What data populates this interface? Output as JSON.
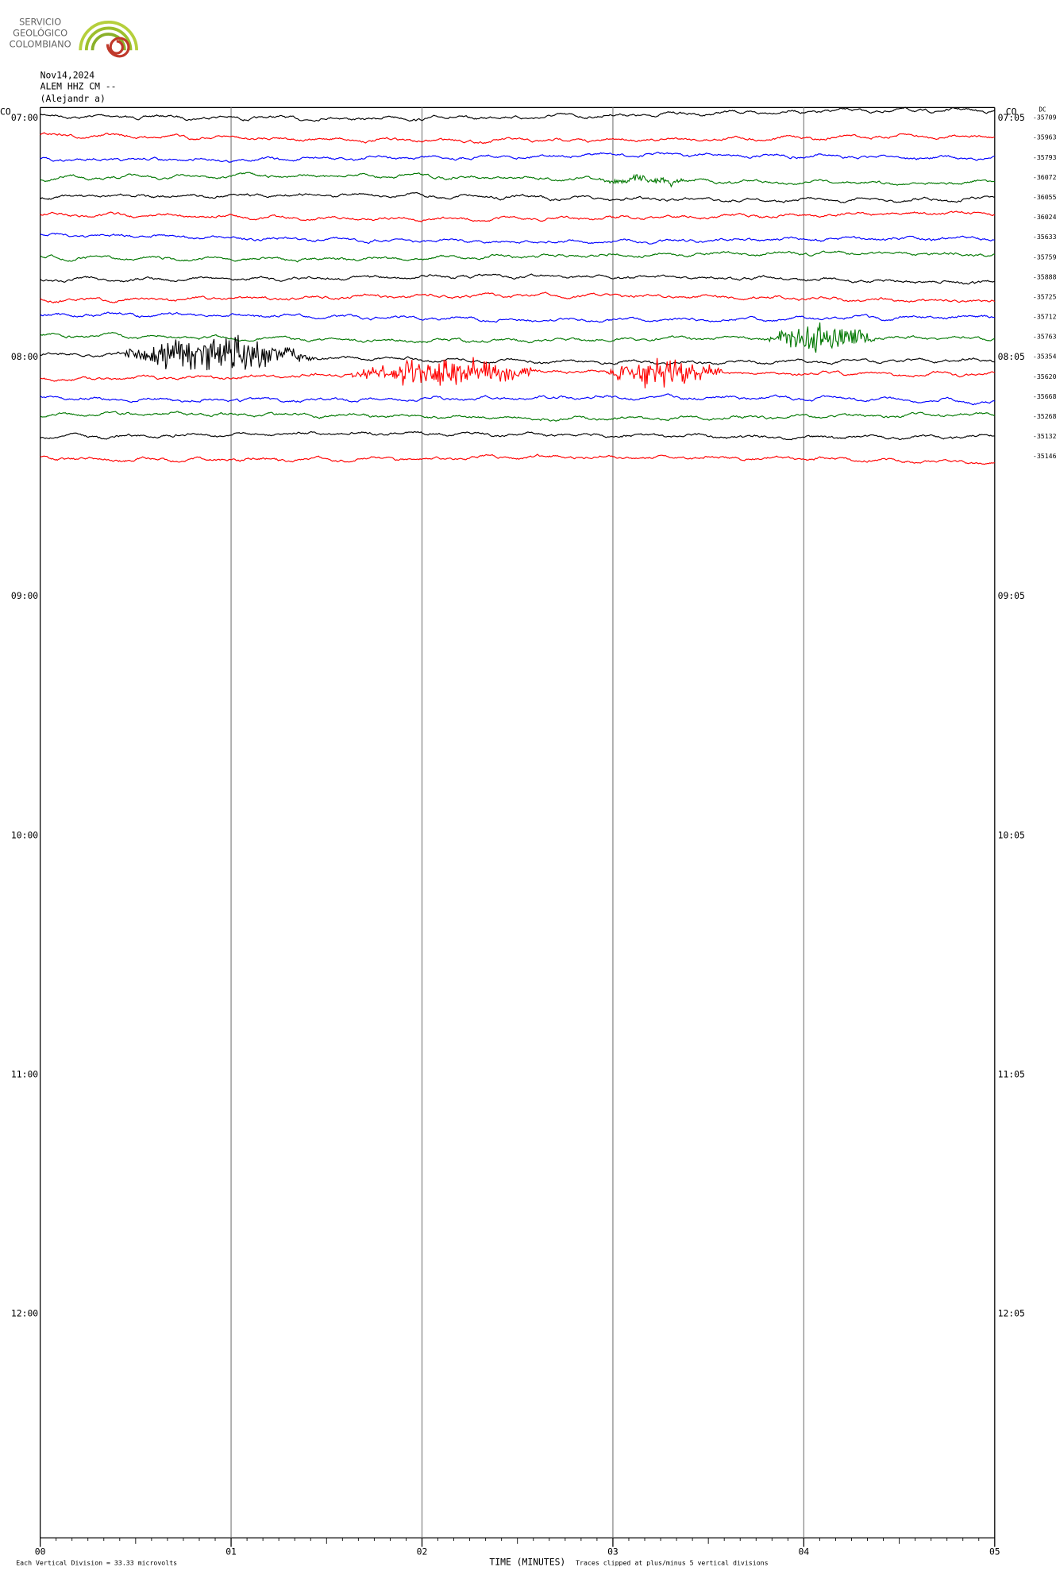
{
  "chart_data": {
    "type": "helicorder",
    "logo_lines": [
      "SERVICIO",
      "GEOLÓGICO",
      "COLOMBIANO"
    ],
    "header": [
      "Nov14,2024",
      "ALEM HHZ CM --",
      "(Alejandr  a)"
    ],
    "network_left": "CO",
    "network_right": "CO",
    "dc_title": "DC",
    "rows": [
      {
        "dc": -35709,
        "color": "#000000"
      },
      {
        "dc": -35963,
        "color": "#ff0000"
      },
      {
        "dc": -35793,
        "color": "#0000ff"
      },
      {
        "dc": -36072,
        "color": "#007700"
      },
      {
        "dc": -36055,
        "color": "#000000"
      },
      {
        "dc": -36024,
        "color": "#ff0000"
      },
      {
        "dc": -35633,
        "color": "#0000ff"
      },
      {
        "dc": -35759,
        "color": "#007700"
      },
      {
        "dc": -35888,
        "color": "#000000"
      },
      {
        "dc": -35725,
        "color": "#ff0000"
      },
      {
        "dc": -35712,
        "color": "#0000ff"
      },
      {
        "dc": -35763,
        "color": "#007700"
      },
      {
        "dc": -35354,
        "color": "#000000"
      },
      {
        "dc": -35620,
        "color": "#ff0000"
      },
      {
        "dc": -35668,
        "color": "#0000ff"
      },
      {
        "dc": -35268,
        "color": "#007700"
      },
      {
        "dc": -35132,
        "color": "#000000"
      },
      {
        "dc": -35146,
        "color": "#ff0000"
      }
    ],
    "hours": [
      {
        "left": "07:00",
        "right": "07:05"
      },
      {
        "left": "08:00",
        "right": "08:05"
      },
      {
        "left": "09:00",
        "right": "09:05"
      },
      {
        "left": "10:00",
        "right": "10:05"
      },
      {
        "left": "11:00",
        "right": "11:05"
      },
      {
        "left": "12:00",
        "right": "12:05"
      }
    ],
    "xlim": [
      0,
      5
    ],
    "xticks": [
      {
        "value": 0,
        "label": "00"
      },
      {
        "value": 1,
        "label": "01"
      },
      {
        "value": 2,
        "label": "02"
      },
      {
        "value": 3,
        "label": "03"
      },
      {
        "value": 4,
        "label": "04"
      },
      {
        "value": 5,
        "label": "05"
      }
    ],
    "xlabel": "TIME (MINUTES)",
    "footer_left": "Each Vertical Division =   33.33 microvolts",
    "footer_right": "Traces clipped at plus/minus 5 vertical divisions"
  }
}
